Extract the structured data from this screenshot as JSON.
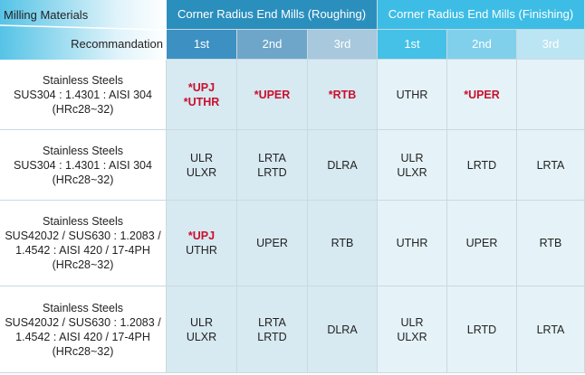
{
  "header": {
    "corner": [
      "Milling Materials",
      "Recommandation"
    ],
    "groups": [
      "Corner Radius End Mills (Roughing)",
      "Corner Radius End Mills (Finishing)"
    ],
    "ranks": [
      "1st",
      "2nd",
      "3rd",
      "1st",
      "2nd",
      "3rd"
    ]
  },
  "accent_color": "#c8102e",
  "rows": [
    {
      "material": [
        "Stainless Steels",
        "SUS304 : 1.4301 : AISI 304",
        "(HRc28~32)"
      ],
      "cells": [
        [
          "*UPJ",
          "*UTHR"
        ],
        [
          "*UPER"
        ],
        [
          "*RTB"
        ],
        [
          "UTHR"
        ],
        [
          "*UPER"
        ],
        []
      ]
    },
    {
      "material": [
        "Stainless Steels",
        "SUS304 : 1.4301 : AISI 304",
        "(HRc28~32)"
      ],
      "cells": [
        [
          "ULR",
          "ULXR"
        ],
        [
          "LRTA",
          "LRTD"
        ],
        [
          "DLRA"
        ],
        [
          "ULR",
          "ULXR"
        ],
        [
          "LRTD"
        ],
        [
          "LRTA"
        ]
      ]
    },
    {
      "material": [
        "Stainless Steels",
        "SUS420J2 / SUS630 : 1.2083 /",
        "1.4542 : AISI 420 / 17-4PH",
        "(HRc28~32)"
      ],
      "cells": [
        [
          "*UPJ",
          "UTHR"
        ],
        [
          "UPER"
        ],
        [
          "RTB"
        ],
        [
          "UTHR"
        ],
        [
          "UPER"
        ],
        [
          "RTB"
        ]
      ]
    },
    {
      "material": [
        "Stainless Steels",
        "SUS420J2 / SUS630 : 1.2083 /",
        "1.4542 : AISI 420 / 17-4PH",
        "(HRc28~32)"
      ],
      "cells": [
        [
          "ULR",
          "ULXR"
        ],
        [
          "LRTA",
          "LRTD"
        ],
        [
          "DLRA"
        ],
        [
          "ULR",
          "ULXR"
        ],
        [
          "LRTD"
        ],
        [
          "LRTA"
        ]
      ]
    }
  ]
}
